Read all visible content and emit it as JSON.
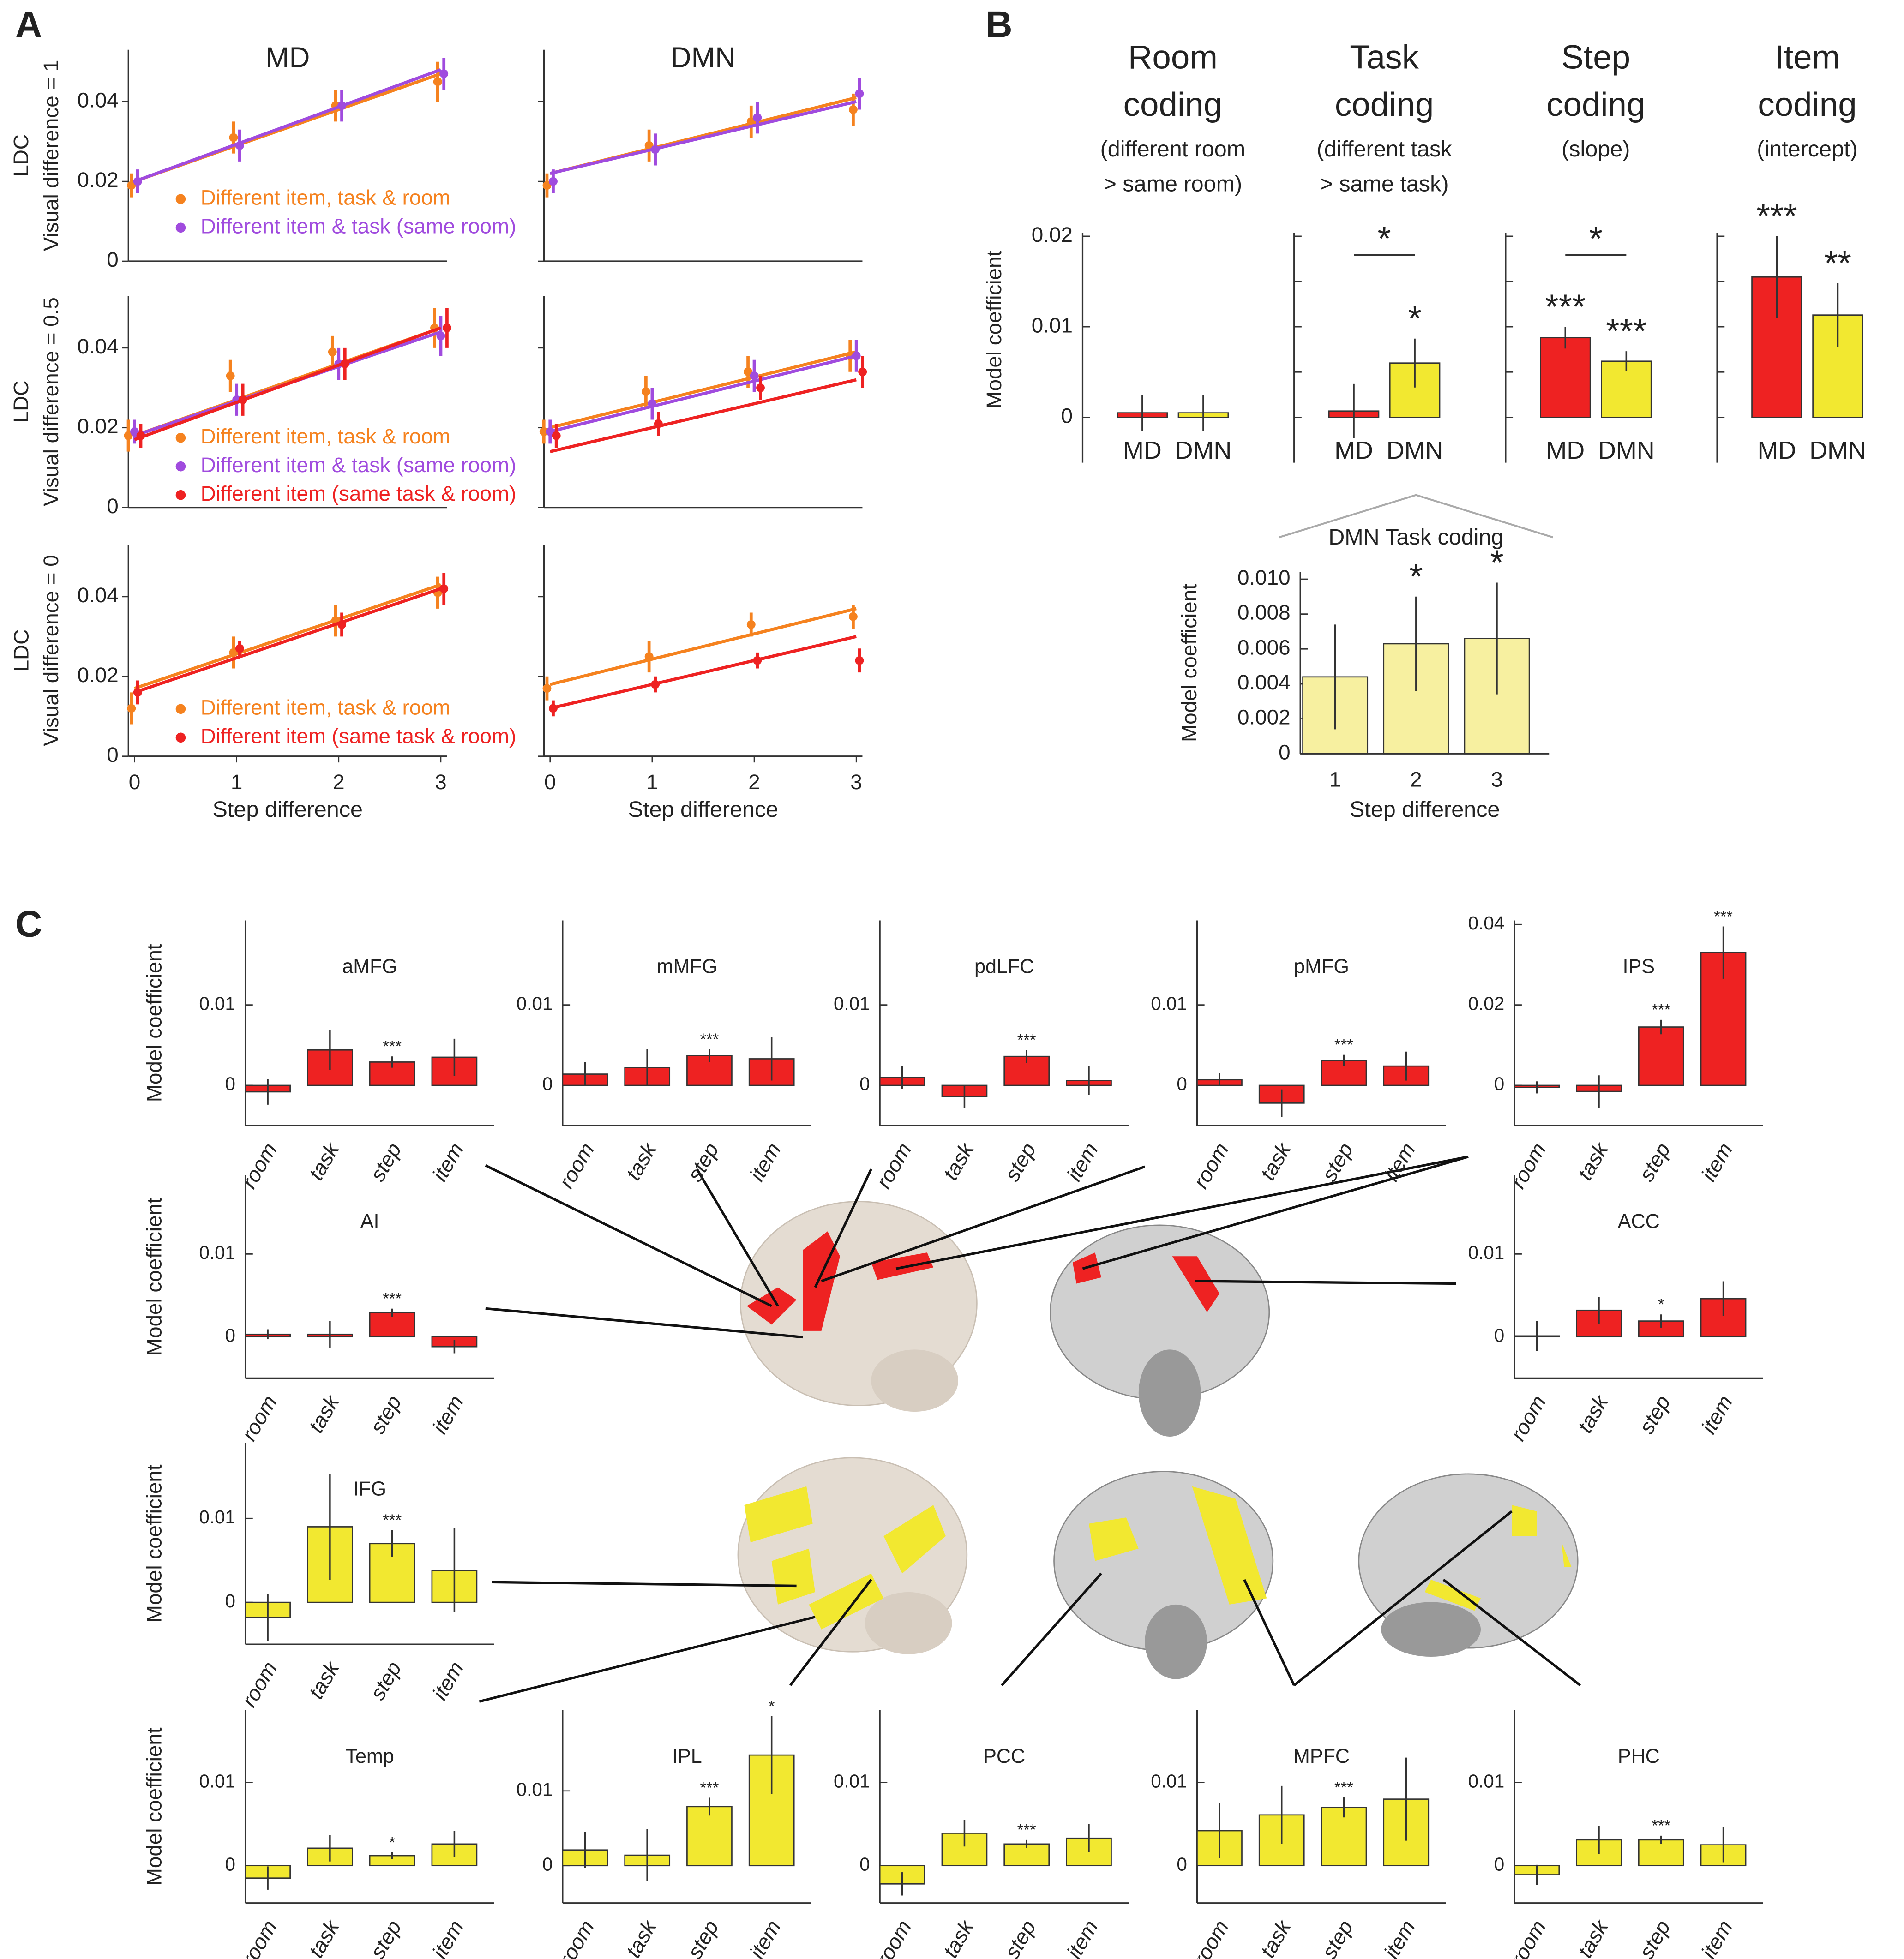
{
  "panel_labels": [
    "A",
    "B",
    "C"
  ],
  "chart_data": [
    {
      "type": "line",
      "title": "MD",
      "ylabel": [
        "LDC",
        "Visual difference = 1"
      ],
      "x": [
        0,
        1,
        2,
        3
      ],
      "fit_x": [
        0,
        3
      ],
      "xlim": [
        -0.06,
        3.06
      ],
      "ylim": [
        0,
        0.053
      ],
      "yticks": [
        0,
        0.02,
        0.04
      ],
      "series": [
        {
          "name": "Different item, task & room",
          "color": "#f5821f",
          "values": [
            0.019,
            0.031,
            0.039,
            0.045
          ],
          "errors": [
            0.003,
            0.004,
            0.004,
            0.005
          ],
          "fit": [
            0.02,
            0.047
          ]
        },
        {
          "name": "Different item & task (same room)",
          "color": "#a04bde",
          "values": [
            0.02,
            0.029,
            0.039,
            0.047
          ],
          "errors": [
            0.003,
            0.004,
            0.004,
            0.004
          ],
          "fit": [
            0.02,
            0.048
          ]
        }
      ]
    },
    {
      "type": "line",
      "title": "DMN",
      "ytick_labels": false,
      "x": [
        0,
        1,
        2,
        3
      ],
      "fit_x": [
        0,
        3
      ],
      "xlim": [
        -0.06,
        3.06
      ],
      "ylim": [
        0,
        0.053
      ],
      "yticks": [
        0,
        0.02,
        0.04
      ],
      "series": [
        {
          "color": "#f5821f",
          "values": [
            0.019,
            0.029,
            0.035,
            0.038
          ],
          "errors": [
            0.003,
            0.004,
            0.004,
            0.004
          ],
          "fit": [
            0.022,
            0.041
          ]
        },
        {
          "color": "#a04bde",
          "values": [
            0.02,
            0.028,
            0.036,
            0.042
          ],
          "errors": [
            0.003,
            0.004,
            0.004,
            0.004
          ],
          "fit": [
            0.022,
            0.04
          ]
        }
      ]
    },
    {
      "type": "line",
      "ylabel": [
        "LDC",
        "Visual difference = 0.5"
      ],
      "x": [
        0,
        1,
        2,
        3
      ],
      "fit_x": [
        0,
        3
      ],
      "xlim": [
        -0.06,
        3.06
      ],
      "ylim": [
        0,
        0.053
      ],
      "yticks": [
        0,
        0.02,
        0.04
      ],
      "series": [
        {
          "name": "Different item, task & room",
          "color": "#f5821f",
          "values": [
            0.018,
            0.033,
            0.039,
            0.045
          ],
          "errors": [
            0.004,
            0.004,
            0.004,
            0.005
          ],
          "fit": [
            0.018,
            0.045
          ]
        },
        {
          "name": "Different item & task (same room)",
          "color": "#a04bde",
          "values": [
            0.019,
            0.027,
            0.036,
            0.043
          ],
          "errors": [
            0.003,
            0.004,
            0.004,
            0.005
          ],
          "fit": [
            0.018,
            0.044
          ]
        },
        {
          "name": "Different item (same task & room)",
          "color": "#ee2222",
          "values": [
            0.018,
            0.027,
            0.036,
            0.045
          ],
          "errors": [
            0.003,
            0.004,
            0.004,
            0.005
          ],
          "fit": [
            0.017,
            0.045
          ]
        }
      ]
    },
    {
      "type": "line",
      "ytick_labels": false,
      "x": [
        0,
        1,
        2,
        3
      ],
      "fit_x": [
        0,
        3
      ],
      "xlim": [
        -0.06,
        3.06
      ],
      "ylim": [
        0,
        0.053
      ],
      "yticks": [
        0,
        0.02,
        0.04
      ],
      "series": [
        {
          "color": "#f5821f",
          "values": [
            0.019,
            0.029,
            0.034,
            0.038
          ],
          "errors": [
            0.003,
            0.004,
            0.004,
            0.004
          ],
          "fit": [
            0.02,
            0.039
          ]
        },
        {
          "color": "#a04bde",
          "values": [
            0.019,
            0.026,
            0.033,
            0.038
          ],
          "errors": [
            0.003,
            0.004,
            0.004,
            0.004
          ],
          "fit": [
            0.019,
            0.038
          ]
        },
        {
          "color": "#ee2222",
          "values": [
            0.018,
            0.021,
            0.03,
            0.034
          ],
          "errors": [
            0.003,
            0.003,
            0.003,
            0.004
          ],
          "fit": [
            0.014,
            0.032
          ]
        }
      ]
    },
    {
      "type": "line",
      "ylabel": [
        "LDC",
        "Visual difference = 0"
      ],
      "xlabel": "Step difference",
      "x": [
        0,
        1,
        2,
        3
      ],
      "fit_x": [
        0,
        3
      ],
      "xlim": [
        -0.06,
        3.06
      ],
      "ylim": [
        0,
        0.053
      ],
      "yticks": [
        0,
        0.02,
        0.04
      ],
      "xticks": [
        0,
        1,
        2,
        3
      ],
      "series": [
        {
          "name": "Different item, task & room",
          "color": "#f5821f",
          "values": [
            0.012,
            0.026,
            0.034,
            0.041
          ],
          "errors": [
            0.004,
            0.004,
            0.004,
            0.004
          ],
          "fit": [
            0.017,
            0.043
          ]
        },
        {
          "name": "Different item (same task & room)",
          "color": "#ee2222",
          "values": [
            0.016,
            0.027,
            0.033,
            0.042
          ],
          "errors": [
            0.003,
            0.002,
            0.003,
            0.004
          ],
          "fit": [
            0.016,
            0.042
          ]
        }
      ]
    },
    {
      "type": "line",
      "ytick_labels": false,
      "xlabel": "Step difference",
      "x": [
        0,
        1,
        2,
        3
      ],
      "fit_x": [
        0,
        3
      ],
      "xlim": [
        -0.06,
        3.06
      ],
      "ylim": [
        0,
        0.053
      ],
      "yticks": [
        0,
        0.02,
        0.04
      ],
      "xticks": [
        0,
        1,
        2,
        3
      ],
      "series": [
        {
          "color": "#f5821f",
          "values": [
            0.017,
            0.025,
            0.033,
            0.035
          ],
          "errors": [
            0.003,
            0.004,
            0.003,
            0.003
          ],
          "fit": [
            0.018,
            0.037
          ]
        },
        {
          "color": "#ee2222",
          "values": [
            0.012,
            0.018,
            0.024,
            0.024
          ],
          "errors": [
            0.002,
            0.002,
            0.002,
            0.003
          ],
          "fit": [
            0.012,
            0.03
          ]
        }
      ]
    },
    {
      "type": "bar",
      "title": [
        "Room",
        "coding"
      ],
      "subtitle": [
        "(different room",
        "> same room)"
      ],
      "ylabel": "Model coefficient",
      "categories": [
        "MD",
        "DMN"
      ],
      "colors": [
        "#ee2222",
        "#f2e830"
      ],
      "values": [
        0.0005,
        0.0005
      ],
      "errors": [
        0.002,
        0.002
      ],
      "significance": [
        null,
        null
      ],
      "ylim": [
        -0.005,
        0.0204
      ],
      "yticks": [
        0,
        0.01,
        0.02
      ]
    },
    {
      "type": "bar",
      "title": [
        "Task",
        "coding"
      ],
      "subtitle": [
        "(different task",
        "> same task)"
      ],
      "ytick_labels": false,
      "categories": [
        "MD",
        "DMN"
      ],
      "colors": [
        "#ee2222",
        "#f2e830"
      ],
      "values": [
        0.0007,
        0.006
      ],
      "errors": [
        0.003,
        0.0027
      ],
      "significance": [
        null,
        "*"
      ],
      "comparison": "*",
      "ylim": [
        -0.005,
        0.0204
      ],
      "yticks": [
        0,
        0.005,
        0.01,
        0.015,
        0.02
      ]
    },
    {
      "type": "bar",
      "title": [
        "Step",
        "coding"
      ],
      "subtitle": [
        "(slope)"
      ],
      "ytick_labels": false,
      "categories": [
        "MD",
        "DMN"
      ],
      "colors": [
        "#ee2222",
        "#f2e830"
      ],
      "values": [
        0.0088,
        0.0062
      ],
      "errors": [
        0.0012,
        0.0011
      ],
      "significance": [
        "***",
        "***"
      ],
      "comparison": "*",
      "ylim": [
        -0.005,
        0.0204
      ],
      "yticks": [
        0,
        0.005,
        0.01,
        0.015,
        0.02
      ]
    },
    {
      "type": "bar",
      "title": [
        "Item",
        "coding"
      ],
      "subtitle": [
        "(intercept)"
      ],
      "ytick_labels": false,
      "categories": [
        "MD",
        "DMN"
      ],
      "colors": [
        "#ee2222",
        "#f2e830"
      ],
      "values": [
        0.0155,
        0.0113
      ],
      "errors": [
        0.0045,
        0.0035
      ],
      "significance": [
        "***",
        "**"
      ],
      "ylim": [
        -0.005,
        0.0204
      ],
      "yticks": [
        0,
        0.005,
        0.01,
        0.015,
        0.02
      ]
    },
    {
      "type": "bar",
      "title": "DMN Task coding",
      "ylabel": "Model coefficient",
      "xlabel": "Step difference",
      "categories": [
        "1",
        "2",
        "3"
      ],
      "colors": [
        "#f7f0a0",
        "#f7f0a0",
        "#f7f0a0"
      ],
      "values": [
        0.0044,
        0.0063,
        0.0066
      ],
      "errors": [
        0.003,
        0.0027,
        0.0032
      ],
      "significance": [
        null,
        "*",
        "*"
      ],
      "ylim": [
        0,
        0.0104
      ],
      "yticks": [
        0,
        0.002,
        0.004,
        0.006,
        0.008,
        {
          "value": 0.01,
          "label": "0.010"
        }
      ]
    },
    {
      "type": "bar",
      "title": "aMFG",
      "ylabel": "Model coefficient",
      "categories": [
        "room",
        "task",
        "step",
        "item"
      ],
      "colors": [
        "#ee2222",
        "#ee2222",
        "#ee2222",
        "#ee2222"
      ],
      "values": [
        -0.0008,
        0.0044,
        0.0029,
        0.0035
      ],
      "errors": [
        0.0016,
        0.0025,
        0.0007,
        0.0023
      ],
      "significance": [
        null,
        null,
        "***",
        null
      ],
      "ylim": [
        -0.005,
        0.0205
      ],
      "yticks": [
        0,
        0.01
      ]
    },
    {
      "type": "bar",
      "title": "mMFG",
      "categories": [
        "room",
        "task",
        "step",
        "item"
      ],
      "colors": [
        "#ee2222",
        "#ee2222",
        "#ee2222",
        "#ee2222"
      ],
      "values": [
        0.0014,
        0.0022,
        0.0037,
        0.0033
      ],
      "errors": [
        0.0015,
        0.0023,
        0.0008,
        0.0027
      ],
      "significance": [
        null,
        null,
        "***",
        null
      ],
      "ylim": [
        -0.005,
        0.0205
      ],
      "yticks": [
        0,
        0.01
      ]
    },
    {
      "type": "bar",
      "title": "pdLFC",
      "categories": [
        "room",
        "task",
        "step",
        "item"
      ],
      "colors": [
        "#ee2222",
        "#ee2222",
        "#ee2222",
        "#ee2222"
      ],
      "values": [
        0.001,
        -0.0014,
        0.0036,
        0.0006
      ],
      "errors": [
        0.0014,
        0.0014,
        0.0008,
        0.0018
      ],
      "significance": [
        null,
        null,
        "***",
        null
      ],
      "ylim": [
        -0.005,
        0.0205
      ],
      "yticks": [
        0,
        0.01
      ]
    },
    {
      "type": "bar",
      "title": "pMFG",
      "categories": [
        "room",
        "task",
        "step",
        "item"
      ],
      "colors": [
        "#ee2222",
        "#ee2222",
        "#ee2222",
        "#ee2222"
      ],
      "values": [
        0.0007,
        -0.0022,
        0.0031,
        0.0024
      ],
      "errors": [
        0.0008,
        0.0017,
        0.0007,
        0.0018
      ],
      "significance": [
        null,
        null,
        "***",
        null
      ],
      "ylim": [
        -0.005,
        0.0205
      ],
      "yticks": [
        0,
        0.01
      ]
    },
    {
      "type": "bar",
      "title": "IPS",
      "categories": [
        "room",
        "task",
        "step",
        "item"
      ],
      "colors": [
        "#ee2222",
        "#ee2222",
        "#ee2222",
        "#ee2222"
      ],
      "values": [
        -0.0005,
        -0.0015,
        0.0145,
        0.033
      ],
      "errors": [
        0.0015,
        0.004,
        0.0018,
        0.0065
      ],
      "significance": [
        null,
        null,
        "***",
        "***"
      ],
      "ylim": [
        -0.01,
        0.041
      ],
      "yticks": [
        0,
        0.02,
        0.04
      ]
    },
    {
      "type": "bar",
      "title": "AI",
      "ylabel": "Model coefficient",
      "categories": [
        "room",
        "task",
        "step",
        "item"
      ],
      "colors": [
        "#ee2222",
        "#ee2222",
        "#ee2222",
        "#ee2222"
      ],
      "values": [
        0.0003,
        0.0003,
        0.0029,
        -0.0012
      ],
      "errors": [
        0.0006,
        0.0016,
        0.0005,
        0.0008
      ],
      "significance": [
        null,
        null,
        "***",
        null
      ],
      "ylim": [
        -0.005,
        0.0195
      ],
      "yticks": [
        0,
        0.01
      ]
    },
    {
      "type": "bar",
      "title": "ACC",
      "categories": [
        "room",
        "task",
        "step",
        "item"
      ],
      "colors": [
        "#ee2222",
        "#ee2222",
        "#ee2222",
        "#ee2222"
      ],
      "values": [
        0.0001,
        0.0032,
        0.0019,
        0.0046
      ],
      "errors": [
        0.0018,
        0.0016,
        0.0008,
        0.0021
      ],
      "significance": [
        null,
        null,
        "*",
        null
      ],
      "ylim": [
        -0.005,
        0.0195
      ],
      "yticks": [
        0,
        0.01
      ]
    },
    {
      "type": "bar",
      "title": "IFG",
      "ylabel": "Model coefficient",
      "categories": [
        "room",
        "task",
        "step",
        "item"
      ],
      "colors": [
        "#f2e830",
        "#f2e830",
        "#f2e830",
        "#f2e830"
      ],
      "values": [
        -0.0018,
        0.009,
        0.007,
        0.0038
      ],
      "errors": [
        0.0028,
        0.0063,
        0.0016,
        0.005
      ],
      "significance": [
        null,
        null,
        "***",
        null
      ],
      "ylim": [
        -0.005,
        0.019
      ],
      "yticks": [
        0,
        0.01
      ]
    },
    {
      "type": "bar",
      "title": "Temp",
      "ylabel": "Model coefficient",
      "categories": [
        "room",
        "task",
        "step",
        "item"
      ],
      "colors": [
        "#f2e830",
        "#f2e830",
        "#f2e830",
        "#f2e830"
      ],
      "values": [
        -0.0015,
        0.0021,
        0.0012,
        0.0026
      ],
      "errors": [
        0.0014,
        0.0016,
        0.0004,
        0.0016
      ],
      "significance": [
        null,
        null,
        "*",
        null
      ],
      "ylim": [
        -0.0045,
        0.0187
      ],
      "yticks": [
        0,
        0.01
      ]
    },
    {
      "type": "bar",
      "title": "IPL",
      "categories": [
        "room",
        "task",
        "step",
        "item"
      ],
      "colors": [
        "#f2e830",
        "#f2e830",
        "#f2e830",
        "#f2e830"
      ],
      "values": [
        0.0021,
        0.0014,
        0.0079,
        0.0148
      ],
      "errors": [
        0.0024,
        0.0035,
        0.0012,
        0.0052
      ],
      "significance": [
        null,
        null,
        "***",
        "*"
      ],
      "ylim": [
        -0.005,
        0.0208
      ],
      "yticks": [
        0,
        0.01
      ]
    },
    {
      "type": "bar",
      "title": "PCC",
      "categories": [
        "room",
        "task",
        "step",
        "item"
      ],
      "colors": [
        "#f2e830",
        "#f2e830",
        "#f2e830",
        "#f2e830"
      ],
      "values": [
        -0.0022,
        0.0039,
        0.0026,
        0.0033
      ],
      "errors": [
        0.0014,
        0.0016,
        0.0005,
        0.0017
      ],
      "significance": [
        null,
        null,
        "***",
        null
      ],
      "ylim": [
        -0.0045,
        0.0187
      ],
      "yticks": [
        0,
        0.01
      ]
    },
    {
      "type": "bar",
      "title": "MPFC",
      "categories": [
        "room",
        "task",
        "step",
        "item"
      ],
      "colors": [
        "#f2e830",
        "#f2e830",
        "#f2e830",
        "#f2e830"
      ],
      "values": [
        0.0042,
        0.0061,
        0.007,
        0.008
      ],
      "errors": [
        0.0033,
        0.0035,
        0.0012,
        0.005
      ],
      "significance": [
        null,
        null,
        "***",
        null
      ],
      "ylim": [
        -0.0045,
        0.0187
      ],
      "yticks": [
        0,
        0.01
      ]
    },
    {
      "type": "bar",
      "title": "PHC",
      "categories": [
        "room",
        "task",
        "step",
        "item"
      ],
      "colors": [
        "#f2e830",
        "#f2e830",
        "#f2e830",
        "#f2e830"
      ],
      "values": [
        -0.0011,
        0.0031,
        0.0031,
        0.0025
      ],
      "errors": [
        0.0012,
        0.0017,
        0.0005,
        0.0021
      ],
      "significance": [
        null,
        null,
        "***",
        null
      ],
      "ylim": [
        -0.0045,
        0.0187
      ],
      "yticks": [
        0,
        0.01
      ]
    }
  ]
}
